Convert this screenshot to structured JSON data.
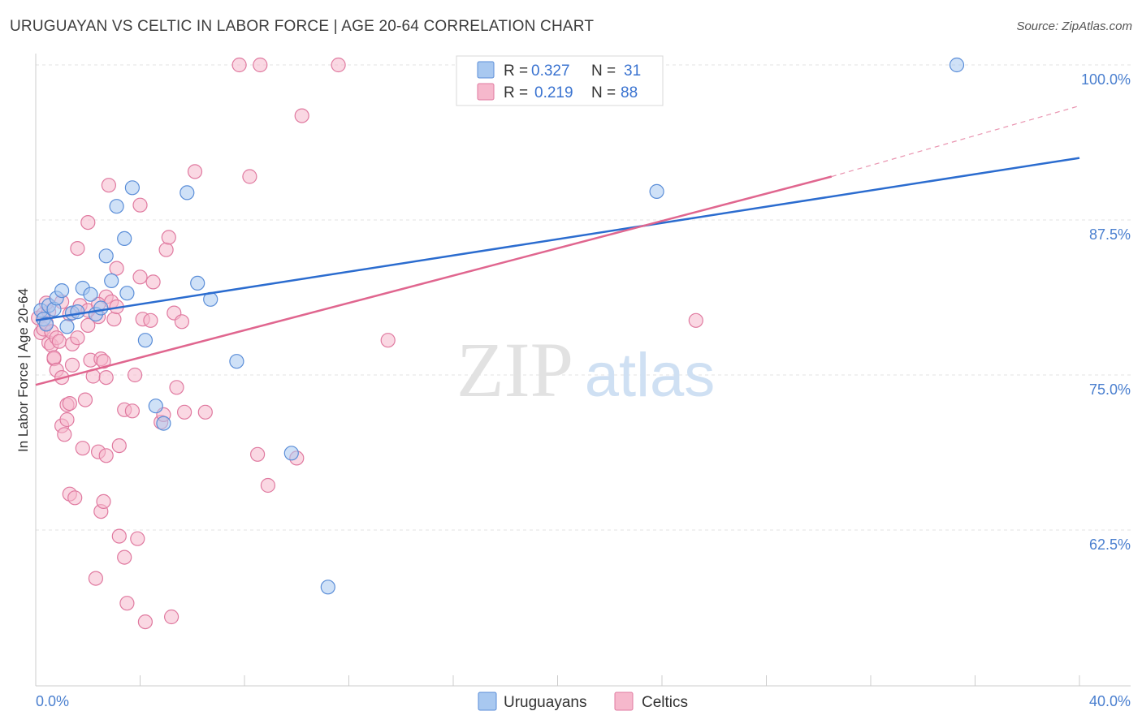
{
  "title": "URUGUAYAN VS CELTIC IN LABOR FORCE | AGE 20-64 CORRELATION CHART",
  "source": "Source: ZipAtlas.com",
  "watermark": {
    "zip": "ZIP",
    "atlas": "atlas"
  },
  "colors": {
    "uruguayans_fill": "#a8c8f0",
    "uruguayans_stroke": "#5b8ed8",
    "uruguayans_line": "#2b6ccf",
    "celtics_fill": "#f6b8cc",
    "celtics_stroke": "#e07aa0",
    "celtics_line": "#e0668f",
    "tick_text": "#4a7fcf"
  },
  "legend": {
    "rows": [
      {
        "r_label": "R =",
        "r_value": "0.327",
        "n_label": "N =",
        "n_value": "31"
      },
      {
        "r_label": "R =",
        "r_value": "0.219",
        "n_label": "N =",
        "n_value": "88"
      }
    ]
  },
  "chart_data": {
    "type": "scatter",
    "title": "URUGUAYAN VS CELTIC IN LABOR FORCE | AGE 20-64 CORRELATION CHART",
    "xlabel": "",
    "ylabel": "In Labor Force | Age 20-64",
    "xlim": [
      0,
      40
    ],
    "ylim": [
      52.5,
      101.5
    ],
    "x_tick_labels": [
      "0.0%",
      "40.0%"
    ],
    "y_ticks": [
      62.5,
      75.0,
      87.5,
      100.0
    ],
    "y_tick_labels": [
      "62.5%",
      "75.0%",
      "87.5%",
      "100.0%"
    ],
    "grid": true,
    "legend_position": "top-center",
    "series": [
      {
        "name": "Uruguayans",
        "r": 0.327,
        "n": 31,
        "trend": {
          "x0": 0,
          "y0": 79.4,
          "x1": 40,
          "y1": 92.5
        },
        "points": [
          [
            0.2,
            80.2
          ],
          [
            0.3,
            79.5
          ],
          [
            0.4,
            79.1
          ],
          [
            0.5,
            80.6
          ],
          [
            0.7,
            80.3
          ],
          [
            0.8,
            81.2
          ],
          [
            1.0,
            81.8
          ],
          [
            1.2,
            78.9
          ],
          [
            1.4,
            80.0
          ],
          [
            1.6,
            80.1
          ],
          [
            1.8,
            82.0
          ],
          [
            2.1,
            81.5
          ],
          [
            2.3,
            79.9
          ],
          [
            2.5,
            80.4
          ],
          [
            2.7,
            84.6
          ],
          [
            2.9,
            82.6
          ],
          [
            3.1,
            88.6
          ],
          [
            3.4,
            86.0
          ],
          [
            3.5,
            81.6
          ],
          [
            3.7,
            90.1
          ],
          [
            4.2,
            77.8
          ],
          [
            4.6,
            72.5
          ],
          [
            4.9,
            71.1
          ],
          [
            5.8,
            89.7
          ],
          [
            6.2,
            82.4
          ],
          [
            6.7,
            81.1
          ],
          [
            7.7,
            76.1
          ],
          [
            9.8,
            68.7
          ],
          [
            11.2,
            57.9
          ],
          [
            23.8,
            89.8
          ],
          [
            35.3,
            100.0
          ]
        ]
      },
      {
        "name": "Celtics",
        "r": 0.219,
        "n": 88,
        "trend": {
          "x0": 0,
          "y0": 74.2,
          "x1": 30.5,
          "y1": 91.0
        },
        "trend_dashed": {
          "x0": 30.5,
          "y0": 91.0,
          "x1": 40,
          "y1": 96.7
        },
        "points": [
          [
            0.1,
            79.6
          ],
          [
            0.2,
            78.4
          ],
          [
            0.3,
            79.9
          ],
          [
            0.3,
            78.7
          ],
          [
            0.4,
            79.2
          ],
          [
            0.5,
            77.6
          ],
          [
            0.5,
            80.1
          ],
          [
            0.6,
            78.5
          ],
          [
            0.6,
            77.4
          ],
          [
            0.7,
            76.3
          ],
          [
            0.7,
            76.4
          ],
          [
            0.8,
            75.4
          ],
          [
            0.8,
            78.0
          ],
          [
            0.9,
            77.7
          ],
          [
            1.0,
            74.8
          ],
          [
            1.0,
            70.9
          ],
          [
            1.1,
            70.2
          ],
          [
            1.2,
            72.6
          ],
          [
            1.2,
            71.4
          ],
          [
            1.3,
            72.7
          ],
          [
            1.3,
            65.4
          ],
          [
            1.4,
            75.8
          ],
          [
            1.4,
            77.5
          ],
          [
            1.5,
            65.1
          ],
          [
            1.6,
            85.2
          ],
          [
            1.6,
            78.0
          ],
          [
            1.7,
            80.6
          ],
          [
            1.8,
            69.1
          ],
          [
            1.9,
            73.0
          ],
          [
            2.0,
            79.0
          ],
          [
            2.0,
            87.3
          ],
          [
            2.1,
            76.2
          ],
          [
            2.2,
            74.9
          ],
          [
            2.3,
            58.6
          ],
          [
            2.4,
            68.8
          ],
          [
            2.4,
            79.7
          ],
          [
            2.5,
            76.3
          ],
          [
            2.5,
            64.0
          ],
          [
            2.6,
            76.1
          ],
          [
            2.6,
            64.8
          ],
          [
            2.7,
            68.5
          ],
          [
            2.7,
            74.8
          ],
          [
            2.7,
            81.3
          ],
          [
            2.8,
            90.3
          ],
          [
            2.9,
            80.9
          ],
          [
            3.0,
            79.5
          ],
          [
            3.1,
            83.6
          ],
          [
            3.1,
            80.5
          ],
          [
            3.2,
            69.3
          ],
          [
            3.2,
            62.0
          ],
          [
            3.4,
            60.3
          ],
          [
            3.4,
            72.2
          ],
          [
            3.5,
            56.6
          ],
          [
            3.7,
            72.1
          ],
          [
            3.8,
            75.0
          ],
          [
            3.9,
            61.8
          ],
          [
            4.0,
            88.7
          ],
          [
            4.0,
            82.9
          ],
          [
            4.1,
            79.5
          ],
          [
            4.2,
            55.1
          ],
          [
            4.4,
            79.4
          ],
          [
            4.5,
            82.5
          ],
          [
            4.8,
            71.2
          ],
          [
            4.9,
            71.8
          ],
          [
            5.0,
            85.1
          ],
          [
            5.1,
            86.1
          ],
          [
            5.2,
            55.5
          ],
          [
            5.3,
            80.0
          ],
          [
            5.4,
            74.0
          ],
          [
            5.6,
            79.3
          ],
          [
            5.7,
            72.0
          ],
          [
            6.1,
            91.4
          ],
          [
            6.5,
            72.0
          ],
          [
            7.8,
            100.0
          ],
          [
            8.2,
            91.0
          ],
          [
            8.5,
            68.6
          ],
          [
            8.6,
            100.0
          ],
          [
            8.9,
            66.1
          ],
          [
            10.0,
            68.3
          ],
          [
            10.2,
            95.9
          ],
          [
            11.6,
            100.0
          ],
          [
            13.5,
            77.8
          ],
          [
            25.3,
            79.4
          ],
          [
            1.0,
            80.9
          ],
          [
            2.0,
            80.2
          ],
          [
            0.4,
            80.8
          ],
          [
            1.3,
            79.9
          ],
          [
            2.4,
            80.7
          ]
        ]
      }
    ]
  }
}
